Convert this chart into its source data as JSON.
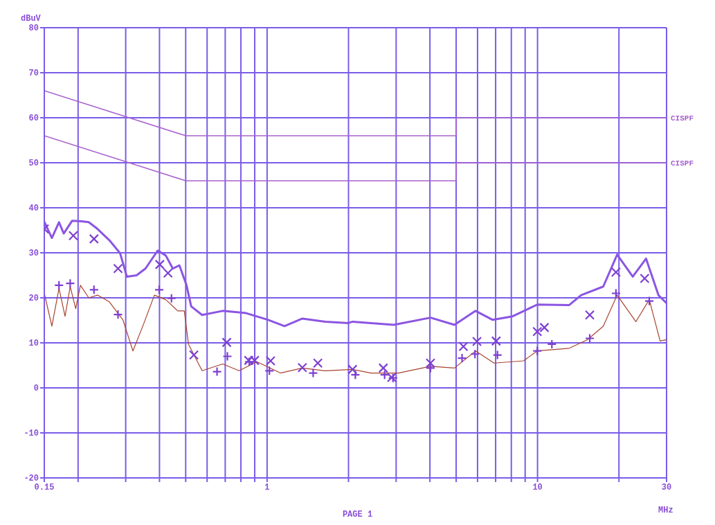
{
  "chart_data": {
    "type": "line",
    "xlabel": "MHz",
    "ylabel": "dBuV",
    "annotations": [
      "PAGE 1"
    ],
    "log": "x",
    "grid": true,
    "xlim": [
      0.15,
      30
    ],
    "xticks": [
      {
        "value": 0.15,
        "label": "0.15"
      },
      {
        "value": 0.2,
        "label": null
      },
      {
        "value": 0.3,
        "label": null
      },
      {
        "value": 0.4,
        "label": null
      },
      {
        "value": 0.5,
        "label": null
      },
      {
        "value": 0.6,
        "label": null
      },
      {
        "value": 0.7,
        "label": null
      },
      {
        "value": 0.8,
        "label": null
      },
      {
        "value": 0.9,
        "label": null
      },
      1,
      {
        "value": 2,
        "label": null
      },
      {
        "value": 3,
        "label": null
      },
      {
        "value": 4,
        "label": null
      },
      {
        "value": 5,
        "label": null
      },
      {
        "value": 6,
        "label": null
      },
      {
        "value": 7,
        "label": null
      },
      {
        "value": 8,
        "label": null
      },
      {
        "value": 9,
        "label": null
      },
      10,
      {
        "value": 20,
        "label": null
      },
      30
    ],
    "ylim": [
      -20,
      80
    ],
    "yticks": [
      -20,
      -10,
      0,
      10,
      20,
      30,
      40,
      50,
      60,
      70,
      80
    ],
    "series": [
      {
        "name": "CISPF",
        "color": "#a862d0",
        "line_style": "solid",
        "x": [
          0.15,
          0.5,
          5,
          5,
          30
        ],
        "values": [
          66,
          56,
          56,
          60,
          60
        ]
      },
      {
        "name": "CISPF",
        "color": "#a862d0",
        "line_style": "solid",
        "x": [
          0.15,
          0.5,
          5,
          5,
          30
        ],
        "values": [
          56,
          46,
          46,
          50,
          50
        ]
      },
      {
        "color": "#8b55e2",
        "line_style": "solid",
        "x": [
          0.15,
          0.16,
          0.17,
          0.177,
          0.19,
          0.206,
          0.219,
          0.236,
          0.261,
          0.286,
          0.303,
          0.329,
          0.355,
          0.394,
          0.422,
          0.448,
          0.474,
          0.503,
          0.524,
          0.575,
          0.685,
          0.836,
          1.01,
          1.16,
          1.35,
          1.64,
          2.0,
          2.07,
          2.94,
          4.02,
          4.93,
          5.9,
          6.83,
          8.09,
          9.98,
          13.1,
          14.5,
          17.5,
          19.7,
          22.5,
          25.2,
          28.0,
          30
        ],
        "values": [
          36.9,
          33.3,
          36.8,
          34.3,
          37.1,
          37.0,
          36.8,
          35.3,
          32.8,
          29.9,
          24.7,
          25.0,
          26.5,
          30.5,
          29.4,
          26.5,
          27.2,
          22.9,
          18.1,
          16.2,
          17.1,
          16.6,
          15.1,
          13.7,
          15.4,
          14.7,
          14.4,
          14.7,
          14.0,
          15.6,
          14.0,
          17.1,
          15.1,
          15.9,
          18.5,
          18.4,
          20.6,
          22.5,
          29.6,
          24.7,
          28.7,
          20.6,
          18.8
        ]
      },
      {
        "color": "#a8432f",
        "line_style": "solid",
        "x": [
          0.15,
          0.16,
          0.17,
          0.179,
          0.187,
          0.196,
          0.204,
          0.219,
          0.236,
          0.261,
          0.293,
          0.319,
          0.349,
          0.383,
          0.422,
          0.467,
          0.494,
          0.512,
          0.575,
          0.685,
          0.788,
          0.916,
          1.12,
          1.35,
          1.64,
          2.07,
          2.42,
          3.06,
          4.02,
          4.93,
          5.9,
          6.91,
          8.87,
          9.98,
          13.1,
          15.3,
          17.5,
          19.7,
          23.1,
          25.9,
          28.4,
          30
        ],
        "values": [
          21.0,
          13.7,
          22.1,
          15.9,
          22.5,
          17.6,
          22.8,
          20.0,
          20.6,
          19.1,
          15.1,
          8.2,
          14.1,
          20.6,
          19.6,
          17.1,
          17.1,
          9.7,
          3.8,
          5.3,
          3.8,
          5.8,
          3.3,
          4.4,
          3.8,
          4.1,
          3.3,
          3.3,
          4.8,
          4.4,
          8.2,
          5.5,
          6.0,
          8.2,
          8.8,
          10.7,
          13.7,
          20.6,
          14.7,
          19.6,
          10.4,
          10.7
        ]
      },
      {
        "type": "scatter",
        "marker": "cross",
        "color": "#7d3fd0",
        "x": [
          0.15,
          0.192,
          0.229,
          0.281,
          0.401,
          0.43,
          0.536,
          0.709,
          0.855,
          0.899,
          1.03,
          1.35,
          1.54,
          2.07,
          2.69,
          2.89,
          4.02,
          5.32,
          5.97,
          7.03,
          9.98,
          10.6,
          15.6,
          19.5,
          24.9
        ],
        "values": [
          35.3,
          33.8,
          33.1,
          26.5,
          27.4,
          25.5,
          7.3,
          10.1,
          6.1,
          6.1,
          6.0,
          4.5,
          5.5,
          4.1,
          4.4,
          2.3,
          5.5,
          9.2,
          10.3,
          10.4,
          12.5,
          13.4,
          16.2,
          25.7,
          24.3
        ]
      },
      {
        "type": "scatter",
        "marker": "plus",
        "color": "#7d3fd0",
        "x": [
          0.17,
          0.187,
          0.229,
          0.281,
          0.399,
          0.443,
          0.653,
          0.713,
          0.859,
          1.02,
          1.48,
          2.12,
          2.72,
          2.92,
          4.02,
          5.26,
          5.87,
          7.11,
          9.98,
          11.3,
          15.6,
          19.5,
          25.9
        ],
        "values": [
          22.8,
          23.2,
          21.8,
          16.3,
          21.8,
          19.9,
          3.6,
          7.0,
          5.8,
          3.8,
          3.3,
          2.9,
          2.9,
          2.2,
          4.4,
          6.6,
          7.5,
          7.3,
          8.2,
          9.7,
          11.0,
          21.0,
          19.3
        ]
      }
    ]
  }
}
